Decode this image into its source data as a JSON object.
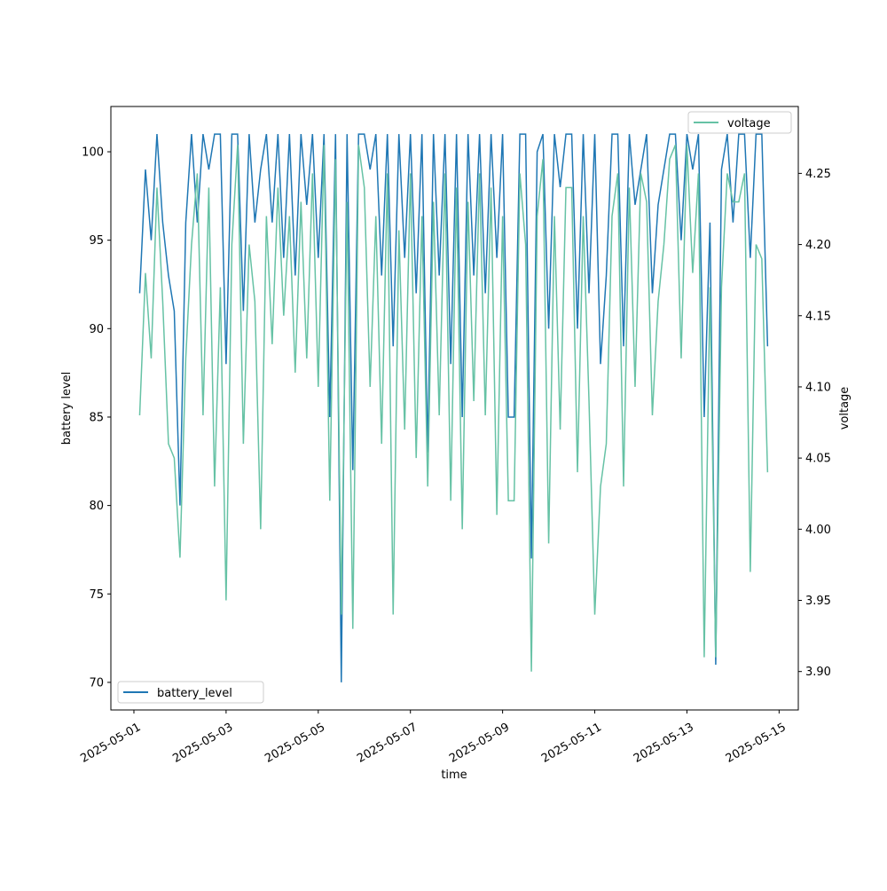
{
  "chart_data": {
    "type": "line",
    "x_label": "time",
    "y_label": "battery level",
    "y2_label": "voltage",
    "x": [
      "2025-05-01T03:00",
      "2025-05-01T06:00",
      "2025-05-01T09:00",
      "2025-05-01T12:00",
      "2025-05-01T15:00",
      "2025-05-01T18:00",
      "2025-05-01T21:00",
      "2025-05-02T00:00",
      "2025-05-02T03:00",
      "2025-05-02T06:00",
      "2025-05-02T09:00",
      "2025-05-02T12:00",
      "2025-05-02T15:00",
      "2025-05-02T18:00",
      "2025-05-02T21:00",
      "2025-05-03T00:00",
      "2025-05-03T03:00",
      "2025-05-03T06:00",
      "2025-05-03T09:00",
      "2025-05-03T12:00",
      "2025-05-03T15:00",
      "2025-05-03T18:00",
      "2025-05-03T21:00",
      "2025-05-04T00:00",
      "2025-05-04T03:00",
      "2025-05-04T06:00",
      "2025-05-04T09:00",
      "2025-05-04T12:00",
      "2025-05-04T15:00",
      "2025-05-04T18:00",
      "2025-05-04T21:00",
      "2025-05-05T00:00",
      "2025-05-05T03:00",
      "2025-05-05T06:00",
      "2025-05-05T09:00",
      "2025-05-05T12:00",
      "2025-05-05T15:00",
      "2025-05-05T18:00",
      "2025-05-05T21:00",
      "2025-05-06T00:00",
      "2025-05-06T03:00",
      "2025-05-06T06:00",
      "2025-05-06T09:00",
      "2025-05-06T12:00",
      "2025-05-06T15:00",
      "2025-05-06T18:00",
      "2025-05-06T21:00",
      "2025-05-07T00:00",
      "2025-05-07T03:00",
      "2025-05-07T06:00",
      "2025-05-07T09:00",
      "2025-05-07T12:00",
      "2025-05-07T15:00",
      "2025-05-07T18:00",
      "2025-05-07T21:00",
      "2025-05-08T00:00",
      "2025-05-08T03:00",
      "2025-05-08T06:00",
      "2025-05-08T09:00",
      "2025-05-08T12:00",
      "2025-05-08T15:00",
      "2025-05-08T18:00",
      "2025-05-08T21:00",
      "2025-05-09T00:00",
      "2025-05-09T03:00",
      "2025-05-09T06:00",
      "2025-05-09T09:00",
      "2025-05-09T12:00",
      "2025-05-09T15:00",
      "2025-05-09T18:00",
      "2025-05-09T21:00",
      "2025-05-10T00:00",
      "2025-05-10T03:00",
      "2025-05-10T06:00",
      "2025-05-10T09:00",
      "2025-05-10T12:00",
      "2025-05-10T15:00",
      "2025-05-10T18:00",
      "2025-05-10T21:00",
      "2025-05-11T00:00",
      "2025-05-11T03:00",
      "2025-05-11T06:00",
      "2025-05-11T09:00",
      "2025-05-11T12:00",
      "2025-05-11T15:00",
      "2025-05-11T18:00",
      "2025-05-11T21:00",
      "2025-05-12T00:00",
      "2025-05-12T03:00",
      "2025-05-12T06:00",
      "2025-05-12T09:00",
      "2025-05-12T12:00",
      "2025-05-12T15:00",
      "2025-05-12T18:00",
      "2025-05-12T21:00",
      "2025-05-13T00:00",
      "2025-05-13T03:00",
      "2025-05-13T06:00",
      "2025-05-13T09:00",
      "2025-05-13T12:00",
      "2025-05-13T15:00",
      "2025-05-13T18:00",
      "2025-05-13T21:00",
      "2025-05-14T00:00",
      "2025-05-14T03:00",
      "2025-05-14T06:00",
      "2025-05-14T09:00",
      "2025-05-14T12:00",
      "2025-05-14T15:00",
      "2025-05-14T18:00"
    ],
    "series": [
      {
        "name": "battery_level",
        "color": "#1f77b4",
        "axis": "y",
        "values": [
          92,
          99,
          95,
          101,
          96,
          93,
          91,
          80,
          96,
          101,
          96,
          101,
          99,
          101,
          101,
          88,
          101,
          101,
          91,
          101,
          96,
          99,
          101,
          96,
          101,
          94,
          101,
          93,
          101,
          97,
          101,
          94,
          101,
          85,
          101,
          70,
          101,
          82,
          101,
          101,
          99,
          101,
          93,
          101,
          89,
          101,
          94,
          101,
          92,
          101,
          83,
          101,
          93,
          101,
          88,
          101,
          85,
          101,
          93,
          101,
          92,
          101,
          94,
          101,
          85,
          85,
          101,
          101,
          77,
          100,
          101,
          90,
          101,
          98,
          101,
          101,
          90,
          101,
          92,
          101,
          88,
          93,
          101,
          101,
          89,
          101,
          97,
          99,
          101,
          92,
          97,
          99,
          101,
          101,
          95,
          101,
          99,
          101,
          85,
          96,
          71,
          99,
          101,
          96,
          101,
          101,
          94,
          101,
          101,
          89
        ]
      },
      {
        "name": "voltage",
        "color": "#66c2a5",
        "axis": "y2",
        "values": [
          4.08,
          4.18,
          4.12,
          4.24,
          4.16,
          4.06,
          4.05,
          3.98,
          4.12,
          4.2,
          4.25,
          4.08,
          4.24,
          4.03,
          4.17,
          3.95,
          4.2,
          4.27,
          4.06,
          4.2,
          4.16,
          4.0,
          4.22,
          4.13,
          4.24,
          4.15,
          4.22,
          4.11,
          4.23,
          4.12,
          4.25,
          4.1,
          4.27,
          4.02,
          4.26,
          3.94,
          4.23,
          3.93,
          4.27,
          4.24,
          4.1,
          4.22,
          4.06,
          4.25,
          3.94,
          4.21,
          4.07,
          4.25,
          4.05,
          4.22,
          4.03,
          4.23,
          4.08,
          4.25,
          4.02,
          4.24,
          4.0,
          4.23,
          4.09,
          4.25,
          4.08,
          4.24,
          4.01,
          4.22,
          4.02,
          4.02,
          4.25,
          4.2,
          3.9,
          4.22,
          4.26,
          3.99,
          4.22,
          4.07,
          4.24,
          4.24,
          4.04,
          4.22,
          4.09,
          3.94,
          4.03,
          4.06,
          4.22,
          4.25,
          4.03,
          4.24,
          4.1,
          4.25,
          4.23,
          4.08,
          4.16,
          4.2,
          4.26,
          4.27,
          4.12,
          4.27,
          4.18,
          4.25,
          3.91,
          4.17,
          3.91,
          4.17,
          4.25,
          4.23,
          4.23,
          4.25,
          3.97,
          4.2,
          4.19,
          4.04
        ]
      }
    ],
    "xlim": [
      "2025-04-30T12:00",
      "2025-05-15T10:00"
    ],
    "xticks": [
      "2025-05-01",
      "2025-05-03",
      "2025-05-05",
      "2025-05-07",
      "2025-05-09",
      "2025-05-11",
      "2025-05-13",
      "2025-05-15"
    ],
    "ylim": [
      68.44,
      102.56
    ],
    "yticks": [
      70,
      75,
      80,
      85,
      90,
      95,
      100
    ],
    "y2lim": [
      3.873,
      4.297
    ],
    "y2ticks": [
      {
        "value": 3.9,
        "label": "3.90"
      },
      3.95,
      {
        "value": 4.0,
        "label": "4.00"
      },
      4.05,
      {
        "value": 4.1,
        "label": "4.10"
      },
      4.15,
      {
        "value": 4.2,
        "label": "4.20"
      },
      4.25
    ],
    "legend": {
      "battery_level": "lower left",
      "voltage": "upper right"
    }
  }
}
